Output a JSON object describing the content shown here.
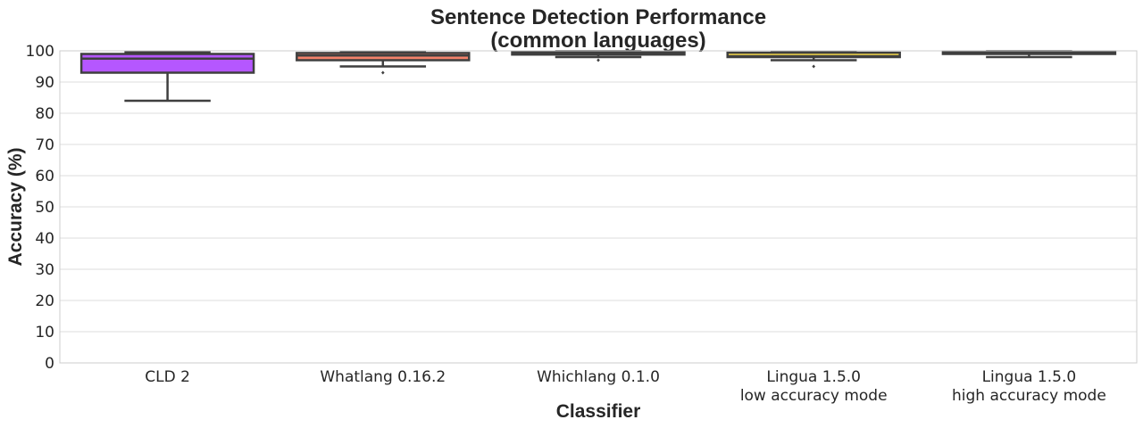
{
  "chart_data": {
    "type": "box",
    "title": [
      "Sentence Detection Performance",
      "(common languages)"
    ],
    "xlabel": "Classifier",
    "ylabel": "Accuracy (%)",
    "ylim": [
      0,
      100
    ],
    "yticks": [
      0,
      10,
      20,
      30,
      40,
      50,
      60,
      70,
      80,
      90,
      100
    ],
    "grid": true,
    "categories": [
      [
        "CLD 2"
      ],
      [
        "Whatlang 0.16.2"
      ],
      [
        "Whichlang 0.1.0"
      ],
      [
        "Lingua 1.5.0",
        "low accuracy mode"
      ],
      [
        "Lingua 1.5.0",
        "high accuracy mode"
      ]
    ],
    "boxes": [
      {
        "whisker_low": 84,
        "q1": 93,
        "median": 97.5,
        "q3": 99,
        "whisker_high": 99.5,
        "outliers": [],
        "color": "#b557ff"
      },
      {
        "whisker_low": 95,
        "q1": 97,
        "median": 98.5,
        "q3": 99.3,
        "whisker_high": 99.7,
        "outliers": [
          93
        ],
        "color": "#f4826a"
      },
      {
        "whisker_low": 98,
        "q1": 98.8,
        "median": 99.3,
        "q3": 99.7,
        "whisker_high": 99.9,
        "outliers": [
          97
        ],
        "color": "#9e9e9e"
      },
      {
        "whisker_low": 97,
        "q1": 98,
        "median": 98.3,
        "q3": 99.4,
        "whisker_high": 99.8,
        "outliers": [
          95
        ],
        "color": "#ffe04a"
      },
      {
        "whisker_low": 98,
        "q1": 99,
        "median": 99.4,
        "q3": 99.8,
        "whisker_high": 99.9,
        "outliers": [],
        "color": "#8c8c8c"
      }
    ]
  }
}
